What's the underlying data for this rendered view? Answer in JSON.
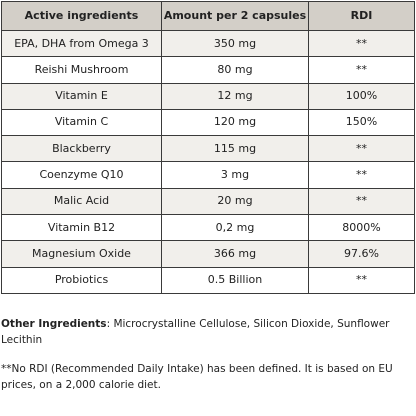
{
  "table": {
    "headers": [
      "Active ingredients",
      "Amount per 2 capsules",
      "RDI"
    ],
    "rows": [
      {
        "ingredient": "EPA, DHA from Omega 3",
        "amount": "350 mg",
        "rdi": "**"
      },
      {
        "ingredient": "Reishi Mushroom",
        "amount": "80 mg",
        "rdi": "**"
      },
      {
        "ingredient": "Vitamin E",
        "amount": "12 mg",
        "rdi": "100%"
      },
      {
        "ingredient": "Vitamin C",
        "amount": "120 mg",
        "rdi": "150%"
      },
      {
        "ingredient": "Blackberry",
        "amount": "115 mg",
        "rdi": "**"
      },
      {
        "ingredient": "Coenzyme Q10",
        "amount": "3 mg",
        "rdi": "**"
      },
      {
        "ingredient": "Malic Acid",
        "amount": "20 mg",
        "rdi": "**"
      },
      {
        "ingredient": "Vitamin B12",
        "amount": "0,2 mg",
        "rdi": "8000%"
      },
      {
        "ingredient": "Magnesium Oxide",
        "amount": "366 mg",
        "rdi": "97.6%"
      },
      {
        "ingredient": "Probiotics",
        "amount": "0.5 Billion",
        "rdi": "**"
      }
    ]
  },
  "other_ingredients": {
    "label": "Other Ingredients",
    "text": ": Microcrystalline Cellulose, Silicon Dioxide, Sunflower Lecithin"
  },
  "footnote": "**No RDI (Recommended Daily Intake) has been defined. It is based on EU prices, on a 2,000 calorie diet.",
  "colors": {
    "header_bg": "#d3cfc8",
    "shaded_row_bg": "#f1efeb",
    "border": "#3a3a3a"
  }
}
